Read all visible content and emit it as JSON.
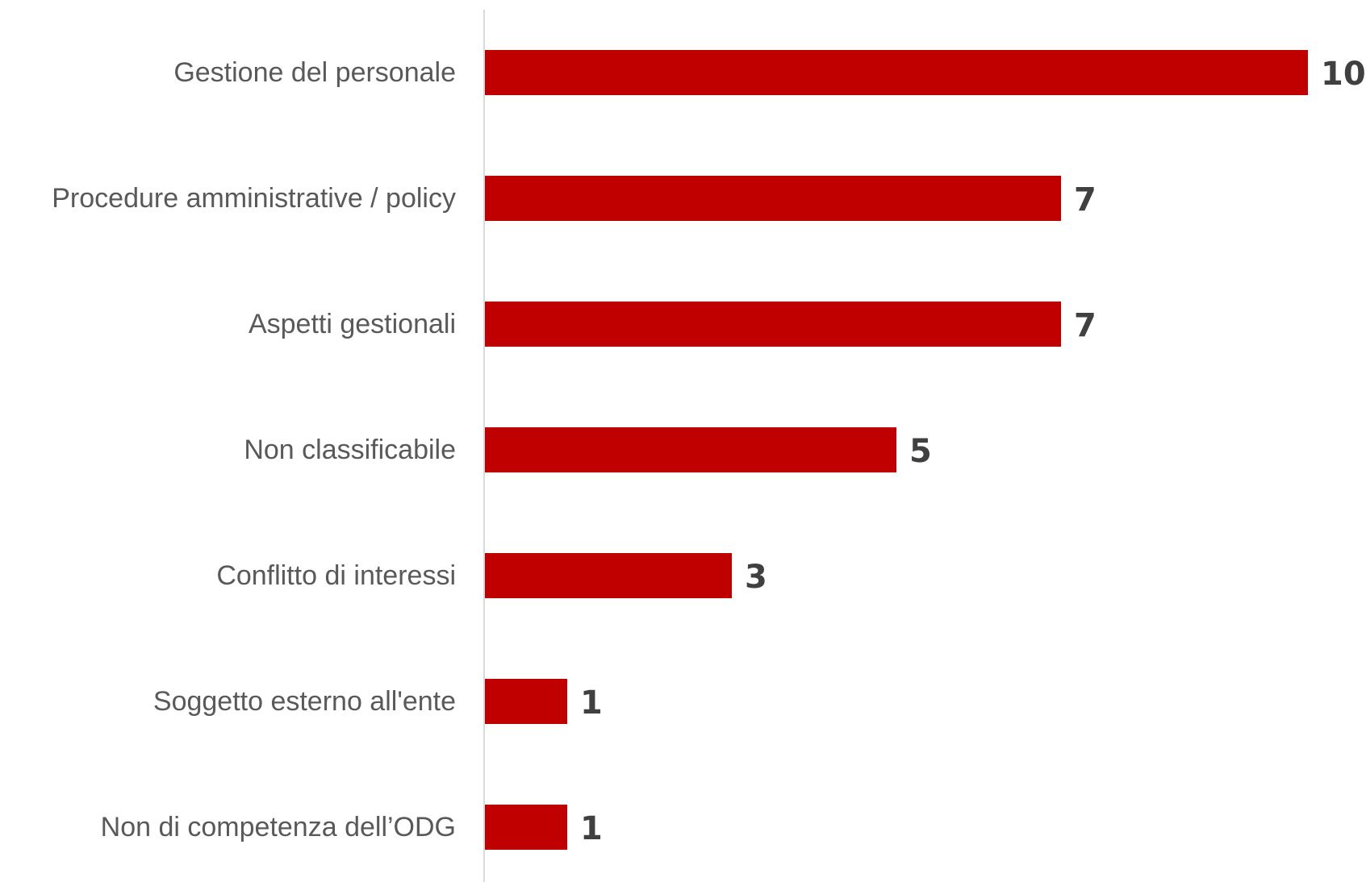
{
  "chart_data": {
    "type": "bar",
    "orientation": "horizontal",
    "categories": [
      "Gestione del personale",
      "Procedure amministrative / policy",
      "Aspetti gestionali",
      "Non classificabile",
      "Conflitto di interessi",
      "Soggetto esterno all'ente",
      "Non di competenza dell’ODG"
    ],
    "values": [
      10,
      7,
      7,
      5,
      3,
      1,
      1
    ],
    "xlim": [
      0,
      10
    ],
    "grid": false,
    "legend": "none",
    "data_labels": true
  },
  "colors": {
    "bar": "#c00000",
    "axis": "#d9d9d9",
    "category_text": "#595959",
    "value_text": "#404040"
  }
}
